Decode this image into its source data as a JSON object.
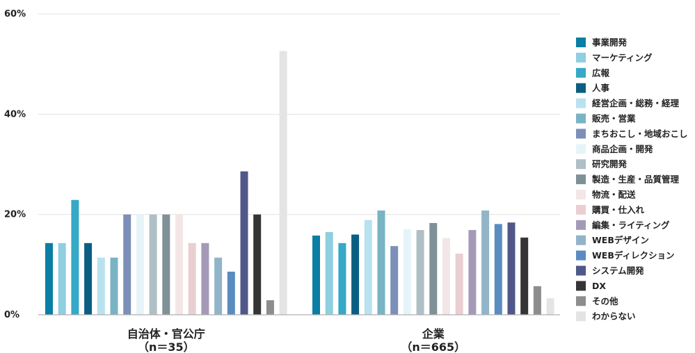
{
  "chart_data": {
    "type": "bar",
    "yunit": "%",
    "ylim": [
      0,
      60
    ],
    "yticks": [
      "0%",
      "20%",
      "40%",
      "60%"
    ],
    "grid": true,
    "legend_position": "right",
    "categories": [
      {
        "label": "自治体・官公庁",
        "sublabel": "（n＝35）"
      },
      {
        "label": "企業",
        "sublabel": "（n＝665）"
      }
    ],
    "series": [
      {
        "name": "事業開発",
        "color": "#0a7ea4",
        "values": [
          14.3,
          15.8
        ]
      },
      {
        "name": "マーケティング",
        "color": "#8ecfe0",
        "values": [
          14.3,
          16.5
        ]
      },
      {
        "name": "広報",
        "color": "#35a9c6",
        "values": [
          22.9,
          14.3
        ]
      },
      {
        "name": "人事",
        "color": "#0b5e82",
        "values": [
          14.3,
          16.0
        ]
      },
      {
        "name": "経営企画・総務・経理",
        "color": "#b8e2ee",
        "values": [
          11.4,
          18.9
        ]
      },
      {
        "name": "販売・営業",
        "color": "#79b3c4",
        "values": [
          11.4,
          20.8
        ]
      },
      {
        "name": "まちおこし・地域おこし",
        "color": "#7b8fb9",
        "values": [
          20.0,
          13.7
        ]
      },
      {
        "name": "商品企画・開発",
        "color": "#e6f4f9",
        "values": [
          20.0,
          17.1
        ]
      },
      {
        "name": "研究開発",
        "color": "#afbfc6",
        "values": [
          20.0,
          16.9
        ]
      },
      {
        "name": "製造・生産・品質管理",
        "color": "#7f9196",
        "values": [
          20.0,
          18.3
        ]
      },
      {
        "name": "物流・配送",
        "color": "#f3e6e6",
        "values": [
          20.0,
          15.3
        ]
      },
      {
        "name": "購買・仕入れ",
        "color": "#e9cfd2",
        "values": [
          14.3,
          12.2
        ]
      },
      {
        "name": "編集・ライティング",
        "color": "#a49ab8",
        "values": [
          14.3,
          16.9
        ]
      },
      {
        "name": "WEBデザイン",
        "color": "#92b4c8",
        "values": [
          11.4,
          20.8
        ]
      },
      {
        "name": "WEBディレクション",
        "color": "#5b8cc0",
        "values": [
          8.6,
          18.1
        ]
      },
      {
        "name": "システム開発",
        "color": "#4f5888",
        "values": [
          28.6,
          18.4
        ]
      },
      {
        "name": "DX",
        "color": "#353535",
        "values": [
          20.0,
          15.4
        ]
      },
      {
        "name": "その他",
        "color": "#8d8d8d",
        "values": [
          2.9,
          5.7
        ]
      },
      {
        "name": "わからない",
        "color": "#e4e4e4",
        "values": [
          52.6,
          3.3
        ]
      }
    ]
  }
}
